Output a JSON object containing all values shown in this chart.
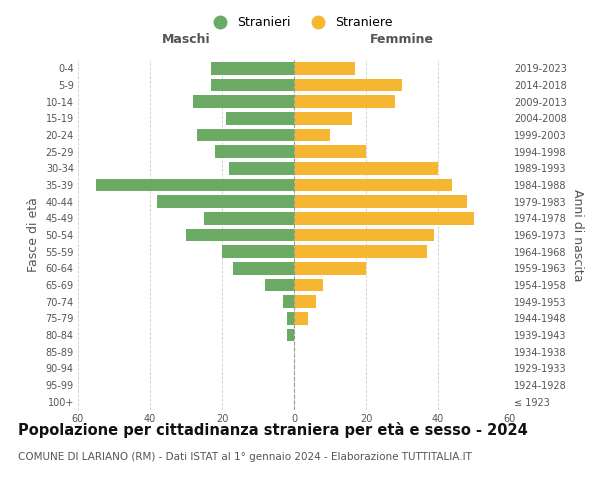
{
  "age_groups": [
    "100+",
    "95-99",
    "90-94",
    "85-89",
    "80-84",
    "75-79",
    "70-74",
    "65-69",
    "60-64",
    "55-59",
    "50-54",
    "45-49",
    "40-44",
    "35-39",
    "30-34",
    "25-29",
    "20-24",
    "15-19",
    "10-14",
    "5-9",
    "0-4"
  ],
  "birth_years": [
    "≤ 1923",
    "1924-1928",
    "1929-1933",
    "1934-1938",
    "1939-1943",
    "1944-1948",
    "1949-1953",
    "1954-1958",
    "1959-1963",
    "1964-1968",
    "1969-1973",
    "1974-1978",
    "1979-1983",
    "1984-1988",
    "1989-1993",
    "1994-1998",
    "1999-2003",
    "2004-2008",
    "2009-2013",
    "2014-2018",
    "2019-2023"
  ],
  "males": [
    0,
    0,
    0,
    0,
    2,
    2,
    3,
    8,
    17,
    20,
    30,
    25,
    38,
    55,
    18,
    22,
    27,
    19,
    28,
    23,
    23
  ],
  "females": [
    0,
    0,
    0,
    0,
    0,
    4,
    6,
    8,
    20,
    37,
    39,
    50,
    48,
    44,
    40,
    20,
    10,
    16,
    28,
    30,
    17
  ],
  "male_color": "#6aaa64",
  "female_color": "#f5b731",
  "background_color": "#ffffff",
  "grid_color": "#cccccc",
  "title": "Popolazione per cittadinanza straniera per età e sesso - 2024",
  "subtitle": "COMUNE DI LARIANO (RM) - Dati ISTAT al 1° gennaio 2024 - Elaborazione TUTTITALIA.IT",
  "xlabel_left": "Maschi",
  "xlabel_right": "Femmine",
  "ylabel_left": "Fasce di età",
  "ylabel_right": "Anni di nascita",
  "legend_male": "Stranieri",
  "legend_female": "Straniere",
  "xlim": 60,
  "title_fontsize": 10.5,
  "subtitle_fontsize": 7.5,
  "tick_fontsize": 7,
  "label_fontsize": 9
}
